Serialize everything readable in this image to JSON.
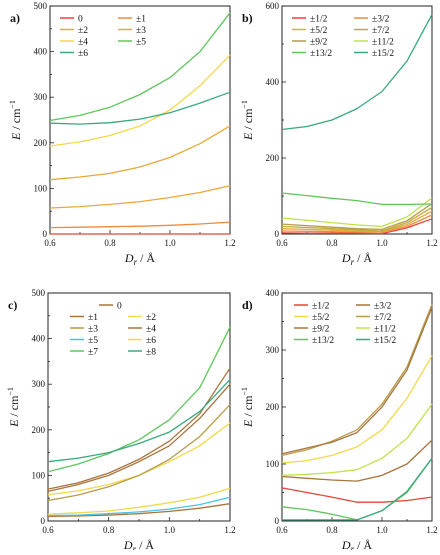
{
  "colors": {
    "red": "#e8433a",
    "orange": "#f08a3c",
    "gold": "#e9a93a",
    "yellow": "#f2d84a",
    "khaki": "#b89b47",
    "olive": "#b7ad3d",
    "lime": "#bfe24a",
    "green": "#5fc55c",
    "teal": "#3aa97d",
    "brown": "#a8743e",
    "cyan": "#4cc1e6"
  },
  "chart_data": [
    {
      "panel": "a)",
      "type": "line",
      "xlabel": "D",
      "xlabel_sub": "r",
      "xunit": " / Å",
      "ylabel": "E",
      "yunit": " / cm",
      "yunit_sup": "−1",
      "xlim": [
        0.6,
        1.2
      ],
      "ylim": [
        0,
        500
      ],
      "xticks": [
        "0.6",
        "0.8",
        "1.0",
        "1.2"
      ],
      "yticks": [
        "0",
        "100",
        "200",
        "300",
        "400",
        "500"
      ],
      "legend_position": "top-left",
      "legend_columns": 2,
      "x": [
        0.6,
        0.7,
        0.8,
        0.9,
        1.0,
        1.1,
        1.2
      ],
      "series": [
        {
          "name": "0",
          "color": "red",
          "values": [
            0,
            0,
            0,
            0,
            0,
            0,
            0
          ]
        },
        {
          "name": "±1",
          "color": "orange",
          "values": [
            14,
            15,
            16,
            17,
            19,
            22,
            26
          ]
        },
        {
          "name": "±2",
          "color": "gold",
          "values": [
            57,
            60,
            65,
            71,
            80,
            91,
            106
          ]
        },
        {
          "name": "±3",
          "color": "gold",
          "values": [
            119,
            125,
            133,
            147,
            168,
            198,
            237
          ]
        },
        {
          "name": "±4",
          "color": "yellow",
          "values": [
            193,
            202,
            216,
            237,
            272,
            325,
            392
          ]
        },
        {
          "name": "±5",
          "color": "green",
          "values": [
            249,
            260,
            278,
            306,
            343,
            400,
            485
          ]
        },
        {
          "name": "±6",
          "color": "teal",
          "values": [
            243,
            241,
            244,
            252,
            266,
            287,
            311
          ]
        }
      ]
    },
    {
      "panel": "b)",
      "type": "line",
      "xlabel": "D",
      "xlabel_sub": "r",
      "xunit": " / Å",
      "ylabel": "E",
      "yunit": " / cm",
      "yunit_sup": "−1",
      "xlim": [
        0.6,
        1.2
      ],
      "ylim": [
        0,
        600
      ],
      "xticks": [
        "0.6",
        "0.8",
        "1.0",
        "1.2"
      ],
      "yticks": [
        "0",
        "200",
        "400",
        "600"
      ],
      "legend_position": "top-left",
      "legend_columns": 2,
      "x": [
        0.6,
        0.7,
        0.8,
        0.9,
        1.0,
        1.1,
        1.2
      ],
      "series": [
        {
          "name": "±1/2",
          "color": "red",
          "values": [
            3,
            2,
            2,
            2,
            1,
            16,
            40
          ]
        },
        {
          "name": "±3/2",
          "color": "orange",
          "values": [
            8,
            7,
            6,
            5,
            5,
            20,
            50
          ]
        },
        {
          "name": "±5/2",
          "color": "gold",
          "values": [
            14,
            12,
            10,
            8,
            6,
            25,
            60
          ]
        },
        {
          "name": "±7/2",
          "color": "olive",
          "values": [
            20,
            17,
            14,
            11,
            8,
            30,
            70
          ]
        },
        {
          "name": "±9/2",
          "color": "khaki",
          "values": [
            26,
            22,
            18,
            14,
            12,
            35,
            80
          ]
        },
        {
          "name": "±11/2",
          "color": "lime",
          "values": [
            42,
            36,
            30,
            24,
            20,
            45,
            95
          ]
        },
        {
          "name": "±13/2",
          "color": "green",
          "values": [
            108,
            101,
            94,
            88,
            78,
            78,
            79
          ]
        },
        {
          "name": "±15/2",
          "color": "teal",
          "values": [
            275,
            283,
            300,
            330,
            375,
            455,
            578
          ]
        }
      ]
    },
    {
      "panel": "c)",
      "type": "line",
      "xlabel": "D",
      "xlabel_sub": "r",
      "xunit": " / Å",
      "ylabel": "E",
      "yunit": " / cm",
      "yunit_sup": "−1",
      "xlim": [
        0.6,
        1.2
      ],
      "ylim": [
        0,
        500
      ],
      "xticks": [
        "0.6",
        "0.8",
        "1.0",
        "1.2"
      ],
      "yticks": [
        "0",
        "100",
        "200",
        "300",
        "400",
        "500"
      ],
      "legend_position": "top-left",
      "legend_columns": 2,
      "x": [
        0.6,
        0.7,
        0.8,
        0.9,
        1.0,
        1.1,
        1.2
      ],
      "series": [
        {
          "name": "0",
          "color": "brown",
          "values": [
            70,
            84,
            105,
            135,
            175,
            235,
            335
          ]
        },
        {
          "name": "±1",
          "color": "brown",
          "values": [
            10,
            11,
            13,
            16,
            21,
            28,
            38
          ]
        },
        {
          "name": "±2",
          "color": "yellow",
          "values": [
            58,
            66,
            80,
            100,
            130,
            165,
            215
          ]
        },
        {
          "name": "±3",
          "color": "khaki",
          "values": [
            45,
            57,
            75,
            100,
            135,
            185,
            255
          ]
        },
        {
          "name": "±4",
          "color": "brown",
          "values": [
            65,
            80,
            100,
            130,
            165,
            225,
            300
          ]
        },
        {
          "name": "±5",
          "color": "cyan",
          "values": [
            12,
            13,
            16,
            20,
            26,
            36,
            52
          ]
        },
        {
          "name": "±6",
          "color": "yellow",
          "values": [
            15,
            18,
            22,
            30,
            40,
            52,
            72
          ]
        },
        {
          "name": "±7",
          "color": "green",
          "values": [
            108,
            125,
            148,
            178,
            222,
            292,
            425
          ]
        },
        {
          "name": "±8",
          "color": "teal",
          "values": [
            130,
            138,
            150,
            170,
            195,
            240,
            310
          ]
        }
      ]
    },
    {
      "panel": "d)",
      "type": "line",
      "xlabel": "D",
      "xlabel_sub": "r",
      "xunit": " / Å",
      "ylabel": "E",
      "yunit": " / cm",
      "yunit_sup": "−1",
      "xlim": [
        0.6,
        1.2
      ],
      "ylim": [
        0,
        400
      ],
      "xticks": [
        "0.6",
        "0.8",
        "1.0",
        "1.2"
      ],
      "yticks": [
        "0",
        "100",
        "200",
        "300",
        "400"
      ],
      "legend_position": "top-left",
      "legend_columns": 2,
      "x": [
        0.6,
        0.7,
        0.8,
        0.9,
        1.0,
        1.1,
        1.2
      ],
      "series": [
        {
          "name": "±1/2",
          "color": "red",
          "values": [
            58,
            50,
            42,
            33,
            33,
            36,
            42
          ]
        },
        {
          "name": "±3/2",
          "color": "brown",
          "values": [
            78,
            75,
            72,
            70,
            80,
            100,
            142
          ]
        },
        {
          "name": "±5/2",
          "color": "yellow",
          "values": [
            102,
            106,
            115,
            130,
            160,
            215,
            290
          ]
        },
        {
          "name": "±7/2",
          "color": "khaki",
          "values": [
            115,
            125,
            140,
            160,
            205,
            270,
            380
          ]
        },
        {
          "name": "±9/2",
          "color": "brown",
          "values": [
            118,
            128,
            138,
            155,
            200,
            265,
            375
          ]
        },
        {
          "name": "±11/2",
          "color": "lime",
          "values": [
            80,
            82,
            85,
            90,
            110,
            145,
            205
          ]
        },
        {
          "name": "±13/2",
          "color": "green",
          "values": [
            25,
            20,
            12,
            2,
            18,
            50,
            110
          ]
        },
        {
          "name": "±15/2",
          "color": "teal",
          "values": [
            2,
            2,
            2,
            2,
            18,
            52,
            110
          ]
        }
      ]
    }
  ]
}
